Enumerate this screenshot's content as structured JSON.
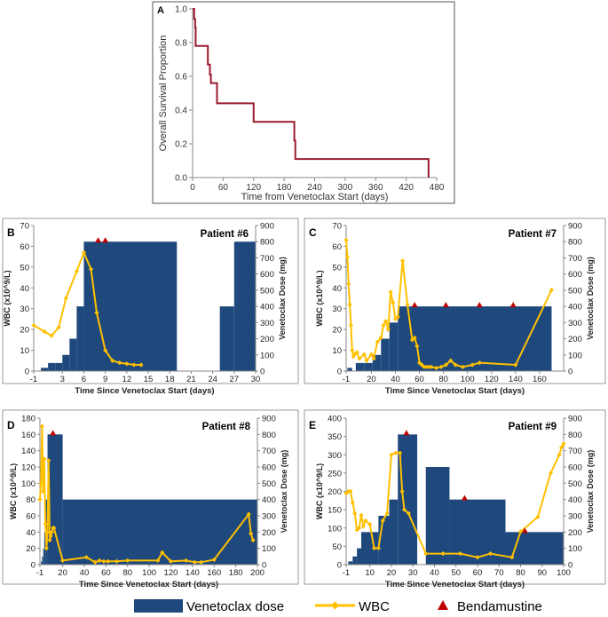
{
  "legend": {
    "dose_label": "Venetoclax dose",
    "wbc_label": "WBC",
    "benda_label": "Bendamustine"
  },
  "colors": {
    "survival": "#9b1b30",
    "dose": "#1f497d",
    "wbc": "#ffc000",
    "benda": "#c00000",
    "frame": "#555555",
    "grid": "#d9d9d9"
  },
  "chart_data": [
    {
      "id": "A",
      "type": "line",
      "panel_label": "A",
      "title": "",
      "xlabel": "Time from Venetoclax Start (days)",
      "ylabel": "Overall Survival Proportion",
      "xlim": [
        0,
        480
      ],
      "ylim": [
        0,
        1.0
      ],
      "xticks": [
        0,
        60,
        120,
        180,
        240,
        300,
        360,
        420,
        480
      ],
      "yticks": [
        0.0,
        0.2,
        0.4,
        0.6,
        0.8,
        1.0
      ],
      "ytick_labels": [
        "0.0",
        "0.2",
        "0.4",
        "0.6",
        "0.8",
        "1.0"
      ],
      "series": [
        {
          "name": "Overall Survival",
          "step": true,
          "x": [
            0,
            3,
            5,
            6,
            30,
            34,
            36,
            48,
            120,
            200,
            202,
            464
          ],
          "y": [
            1.0,
            0.94,
            0.89,
            0.78,
            0.67,
            0.61,
            0.56,
            0.44,
            0.33,
            0.22,
            0.11,
            0.0
          ]
        }
      ]
    },
    {
      "id": "B",
      "type": "bar+line",
      "panel_label": "B",
      "title": "Patient #6",
      "xlabel": "Time Since Venetoclax Start (days)",
      "ylabel": "WBC (x10^9/L)",
      "y2label": "Venetoclax Dose (mg)",
      "xlim": [
        -1,
        30
      ],
      "ylim": [
        0,
        70
      ],
      "y2lim": [
        0,
        900
      ],
      "xticks": [
        -1,
        3,
        6,
        9,
        12,
        15,
        18,
        21,
        24,
        27,
        30
      ],
      "yticks": [
        0,
        10,
        20,
        30,
        40,
        50,
        60,
        70
      ],
      "y2ticks": [
        0,
        100,
        200,
        300,
        400,
        500,
        600,
        700,
        800,
        900
      ],
      "dose_steps": [
        {
          "start": 0,
          "end": 1,
          "dose": 20
        },
        {
          "start": 1,
          "end": 2,
          "dose": 50
        },
        {
          "start": 2,
          "end": 3,
          "dose": 50
        },
        {
          "start": 3,
          "end": 4,
          "dose": 100
        },
        {
          "start": 4,
          "end": 5,
          "dose": 200
        },
        {
          "start": 5,
          "end": 6,
          "dose": 400
        },
        {
          "start": 6,
          "end": 19,
          "dose": 800
        },
        {
          "start": 25,
          "end": 27,
          "dose": 400
        },
        {
          "start": 27,
          "end": 30,
          "dose": 800
        }
      ],
      "wbc": {
        "x": [
          -1,
          0.5,
          1.5,
          2.5,
          3.5,
          5,
          6,
          7,
          7.8,
          9,
          10,
          11,
          12,
          13,
          14
        ],
        "y": [
          22,
          19,
          17,
          21,
          35,
          48,
          57,
          49,
          28,
          10,
          5,
          4,
          3.5,
          3,
          3
        ]
      },
      "bendamustine": {
        "x": [
          8,
          9
        ]
      }
    },
    {
      "id": "C",
      "type": "bar+line",
      "panel_label": "C",
      "title": "Patient #7",
      "xlabel": "Time Since Venetoclax Start (days)",
      "ylabel": "WBC (x10^9/L)",
      "y2label": "Venetoclax Dose (mg)",
      "xlim": [
        -1,
        180
      ],
      "ylim": [
        0,
        70
      ],
      "y2lim": [
        0,
        900
      ],
      "xticks": [
        -1,
        20,
        40,
        60,
        80,
        100,
        120,
        140,
        160
      ],
      "yticks": [
        0,
        10,
        20,
        30,
        40,
        50,
        60,
        70
      ],
      "y2ticks": [
        0,
        100,
        200,
        300,
        400,
        500,
        600,
        700,
        800,
        900
      ],
      "dose_steps": [
        {
          "start": 0,
          "end": 4,
          "dose": 20
        },
        {
          "start": 7,
          "end": 14,
          "dose": 50
        },
        {
          "start": 14,
          "end": 21,
          "dose": 50
        },
        {
          "start": 21,
          "end": 28,
          "dose": 100
        },
        {
          "start": 28,
          "end": 35,
          "dose": 200
        },
        {
          "start": 35,
          "end": 42,
          "dose": 300
        },
        {
          "start": 42,
          "end": 170,
          "dose": 400
        }
      ],
      "wbc": {
        "x": [
          -1,
          0,
          1,
          2,
          3,
          4,
          5,
          6,
          8,
          10,
          14,
          16,
          20,
          22,
          25,
          28,
          30,
          32,
          34,
          36,
          38,
          40,
          42,
          46,
          50,
          54,
          56,
          58,
          60,
          62,
          64,
          66,
          68,
          70,
          74,
          78,
          82,
          86,
          90,
          96,
          104,
          110,
          140,
          170
        ],
        "y": [
          63,
          55,
          42,
          32,
          22,
          10,
          7,
          8,
          9,
          6,
          8,
          5,
          8,
          6,
          14,
          16,
          22,
          24,
          20,
          38,
          33,
          25,
          26,
          53,
          32,
          15,
          16,
          12,
          4,
          3,
          2,
          2,
          2,
          2,
          1.5,
          2,
          3,
          5,
          3,
          2,
          3,
          4,
          3,
          39
        ]
      },
      "bendamustine": {
        "x": [
          56,
          82,
          110,
          138
        ]
      }
    },
    {
      "id": "D",
      "type": "bar+line",
      "panel_label": "D",
      "title": "Patient #8",
      "xlabel": "Time Since Venetoclax Start (days)",
      "ylabel": "WBC (x10^9/L)",
      "y2label": "Venetoclax Dose (mg)",
      "xlim": [
        -1,
        200
      ],
      "ylim": [
        0,
        180
      ],
      "y2lim": [
        0,
        900
      ],
      "xticks": [
        -1,
        20,
        40,
        60,
        80,
        100,
        120,
        140,
        160,
        180,
        200
      ],
      "yticks": [
        0,
        20,
        40,
        60,
        80,
        100,
        120,
        140,
        160,
        180
      ],
      "y2ticks": [
        0,
        100,
        200,
        300,
        400,
        500,
        600,
        700,
        800,
        900
      ],
      "dose_steps": [
        {
          "start": 0,
          "end": 1,
          "dose": 20
        },
        {
          "start": 1,
          "end": 2,
          "dose": 50
        },
        {
          "start": 2,
          "end": 3,
          "dose": 100
        },
        {
          "start": 3,
          "end": 4,
          "dose": 200
        },
        {
          "start": 4,
          "end": 6,
          "dose": 400
        },
        {
          "start": 6,
          "end": 20,
          "dose": 800
        },
        {
          "start": 20,
          "end": 200,
          "dose": 400
        }
      ],
      "wbc": {
        "x": [
          -1,
          0,
          1,
          2,
          3,
          4,
          5,
          6,
          7,
          8,
          9,
          10,
          11,
          12,
          20,
          42,
          50,
          54,
          58,
          62,
          70,
          80,
          108,
          112,
          120,
          134,
          142,
          148,
          160,
          192,
          194,
          196
        ],
        "y": [
          80,
          100,
          170,
          90,
          130,
          50,
          20,
          40,
          128,
          30,
          35,
          40,
          45,
          45,
          5,
          9,
          3,
          5,
          4,
          4,
          4,
          5,
          5,
          15,
          4,
          5,
          3,
          3,
          6,
          62,
          38,
          30
        ]
      },
      "bendamustine": {
        "x": [
          11
        ]
      }
    },
    {
      "id": "E",
      "type": "bar+line",
      "panel_label": "E",
      "title": "Patient #9",
      "xlabel": "Time Since Venetoclax Start (days)",
      "ylabel": "WBC (x10^9/L)",
      "y2label": "Venetoclax Dose (mg)",
      "xlim": [
        -1,
        100
      ],
      "ylim": [
        0,
        400
      ],
      "y2lim": [
        0,
        900
      ],
      "xticks": [
        -1,
        10,
        20,
        30,
        40,
        50,
        60,
        70,
        80,
        90,
        100
      ],
      "yticks": [
        0,
        50,
        100,
        150,
        200,
        250,
        300,
        350,
        400
      ],
      "y2ticks": [
        0,
        100,
        200,
        300,
        400,
        500,
        600,
        700,
        800,
        900
      ],
      "dose_steps": [
        {
          "start": 0,
          "end": 2,
          "dose": 20
        },
        {
          "start": 2,
          "end": 4,
          "dose": 50
        },
        {
          "start": 4,
          "end": 6,
          "dose": 100
        },
        {
          "start": 6,
          "end": 14,
          "dose": 200
        },
        {
          "start": 14,
          "end": 19,
          "dose": 300
        },
        {
          "start": 19,
          "end": 23,
          "dose": 400
        },
        {
          "start": 23,
          "end": 32,
          "dose": 800
        },
        {
          "start": 36,
          "end": 47,
          "dose": 600
        },
        {
          "start": 47,
          "end": 73,
          "dose": 400
        },
        {
          "start": 73,
          "end": 100,
          "dose": 200
        }
      ],
      "wbc": {
        "x": [
          -1,
          0,
          1,
          2,
          3,
          4,
          5,
          6,
          7,
          8,
          10,
          12,
          14,
          16,
          18,
          20,
          22,
          24,
          25,
          26,
          28,
          36,
          44,
          52,
          60,
          66,
          76,
          80,
          88,
          94,
          98,
          99,
          100
        ],
        "y": [
          195,
          200,
          200,
          170,
          140,
          95,
          100,
          135,
          105,
          120,
          110,
          45,
          45,
          120,
          140,
          300,
          305,
          305,
          200,
          150,
          140,
          30,
          30,
          30,
          20,
          30,
          20,
          90,
          130,
          250,
          300,
          320,
          330
        ]
      },
      "bendamustine": {
        "x": [
          27,
          54,
          82
        ]
      }
    }
  ]
}
